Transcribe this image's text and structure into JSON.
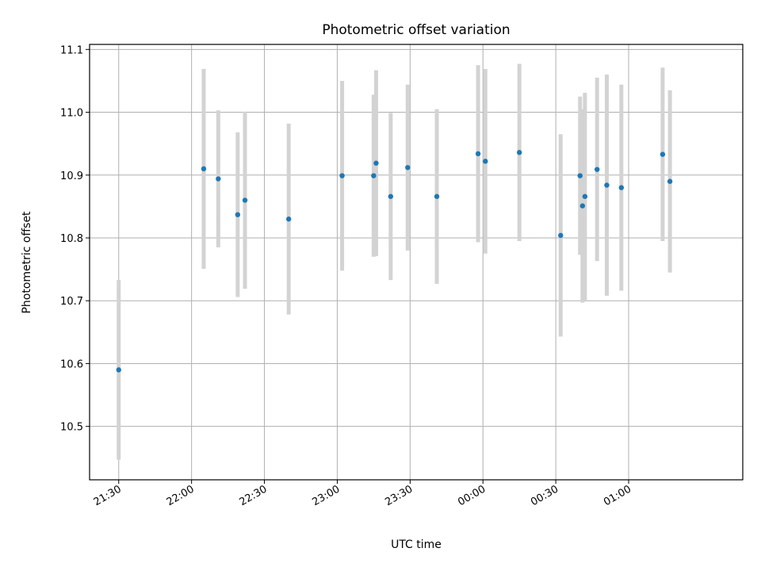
{
  "chart_data": {
    "type": "scatter",
    "title": "Photometric offset variation",
    "xlabel": "UTC time",
    "ylabel": "Photometric offset",
    "x_axis": "time",
    "xlim": [
      "21:18",
      "01:47"
    ],
    "ylim": [
      10.415,
      11.108
    ],
    "grid": true,
    "x_ticks": [
      "21:30",
      "22:00",
      "22:30",
      "23:00",
      "23:30",
      "00:00",
      "00:30",
      "01:00"
    ],
    "y_ticks": [
      10.5,
      10.6,
      10.7,
      10.8,
      10.9,
      11.0,
      11.1
    ],
    "colors": {
      "point": "#1f77b4",
      "errorbar": "#d3d3d3",
      "grid": "#b0b0b0"
    },
    "series": [
      {
        "points": [
          {
            "x": "21:30",
            "y": 10.59,
            "yerr": 0.143
          },
          {
            "x": "22:05",
            "y": 10.91,
            "yerr": 0.159
          },
          {
            "x": "22:11",
            "y": 10.894,
            "yerr": 0.109
          },
          {
            "x": "22:19",
            "y": 10.837,
            "yerr": 0.131
          },
          {
            "x": "22:22",
            "y": 10.86,
            "yerr": 0.141
          },
          {
            "x": "22:40",
            "y": 10.83,
            "yerr": 0.152
          },
          {
            "x": "23:02",
            "y": 10.899,
            "yerr": 0.151
          },
          {
            "x": "23:15",
            "y": 10.899,
            "yerr": 0.129
          },
          {
            "x": "23:16",
            "y": 10.919,
            "yerr": 0.148
          },
          {
            "x": "23:22",
            "y": 10.866,
            "yerr": 0.133
          },
          {
            "x": "23:29",
            "y": 10.912,
            "yerr": 0.132
          },
          {
            "x": "23:41",
            "y": 10.866,
            "yerr": 0.139
          },
          {
            "x": "23:58",
            "y": 10.934,
            "yerr": 0.141
          },
          {
            "x": "00:01",
            "y": 10.922,
            "yerr": 0.147
          },
          {
            "x": "00:15",
            "y": 10.936,
            "yerr": 0.141
          },
          {
            "x": "00:32",
            "y": 10.804,
            "yerr": 0.161
          },
          {
            "x": "00:40",
            "y": 10.899,
            "yerr": 0.126
          },
          {
            "x": "00:41",
            "y": 10.851,
            "yerr": 0.154
          },
          {
            "x": "00:42",
            "y": 10.866,
            "yerr": 0.165
          },
          {
            "x": "00:47",
            "y": 10.909,
            "yerr": 0.146
          },
          {
            "x": "00:51",
            "y": 10.884,
            "yerr": 0.176
          },
          {
            "x": "00:57",
            "y": 10.88,
            "yerr": 0.164
          },
          {
            "x": "01:14",
            "y": 10.933,
            "yerr": 0.138
          },
          {
            "x": "01:17",
            "y": 10.89,
            "yerr": 0.145
          }
        ]
      }
    ]
  }
}
